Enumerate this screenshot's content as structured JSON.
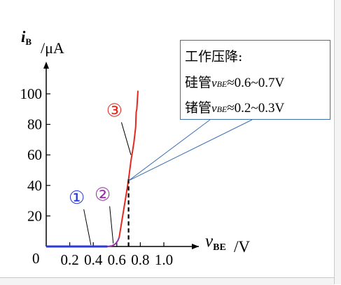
{
  "chart_data": {
    "type": "line",
    "title": "",
    "ylabel_main": "i",
    "ylabel_sub": "B",
    "ylabel_unit": "/μA",
    "xlabel_main": "v",
    "xlabel_sub": "BE",
    "xlabel_unit": "/V",
    "origin_label": "0",
    "xlim": [
      0,
      1.1
    ],
    "ylim": [
      0,
      110
    ],
    "x_ticks": [
      0.2,
      0.4,
      0.6,
      0.8,
      1.0
    ],
    "x_tick_labels": [
      "0.2",
      "0.4",
      "0.6",
      "0.8",
      "1.0"
    ],
    "y_ticks": [
      20,
      40,
      60,
      80,
      100
    ],
    "y_tick_labels": [
      "20",
      "40",
      "60",
      "80",
      "100"
    ],
    "series": [
      {
        "color": "#2a3ad6",
        "x": [
          0.0,
          0.52
        ],
        "y": [
          0,
          0
        ]
      },
      {
        "color": "#9a2fa8",
        "x": [
          0.52,
          0.56,
          0.59,
          0.61,
          0.62
        ],
        "y": [
          0,
          0.4,
          1.8,
          4,
          6
        ]
      },
      {
        "color": "#e5281e",
        "x": [
          0.62,
          0.65,
          0.68,
          0.7,
          0.72,
          0.745,
          0.76,
          0.765,
          0.77,
          0.775,
          0.78
        ],
        "y": [
          6,
          20,
          34,
          44,
          56,
          68,
          78,
          88,
          90,
          96,
          102
        ]
      }
    ],
    "dashed_x": 0.7,
    "dashed_y": 44,
    "regions": [
      {
        "label": "1",
        "glyph": "①",
        "color": "#2a3ad6",
        "text_x": 0.26,
        "text_y": 28,
        "leader_x": 0.38,
        "leader_y": 1
      },
      {
        "label": "2",
        "glyph": "②",
        "color": "#9a2fa8",
        "text_x": 0.48,
        "text_y": 30,
        "leader_x": 0.57,
        "leader_y": 2
      },
      {
        "label": "3",
        "glyph": "③",
        "color": "#e5281e",
        "text_x": 0.58,
        "text_y": 85,
        "leader_x": 0.72,
        "leader_y": 60
      }
    ]
  },
  "callout": {
    "title": "工作压降:",
    "silicon_prefix": "硅管",
    "silicon_var": "v",
    "silicon_sub": "BE",
    "silicon_value": "≈0.6~0.7V",
    "germanium_prefix": "锗管",
    "germanium_var": "v",
    "germanium_sub": "BE",
    "germanium_value": "≈0.2~0.3V",
    "border_color": "#3a6fb0"
  }
}
